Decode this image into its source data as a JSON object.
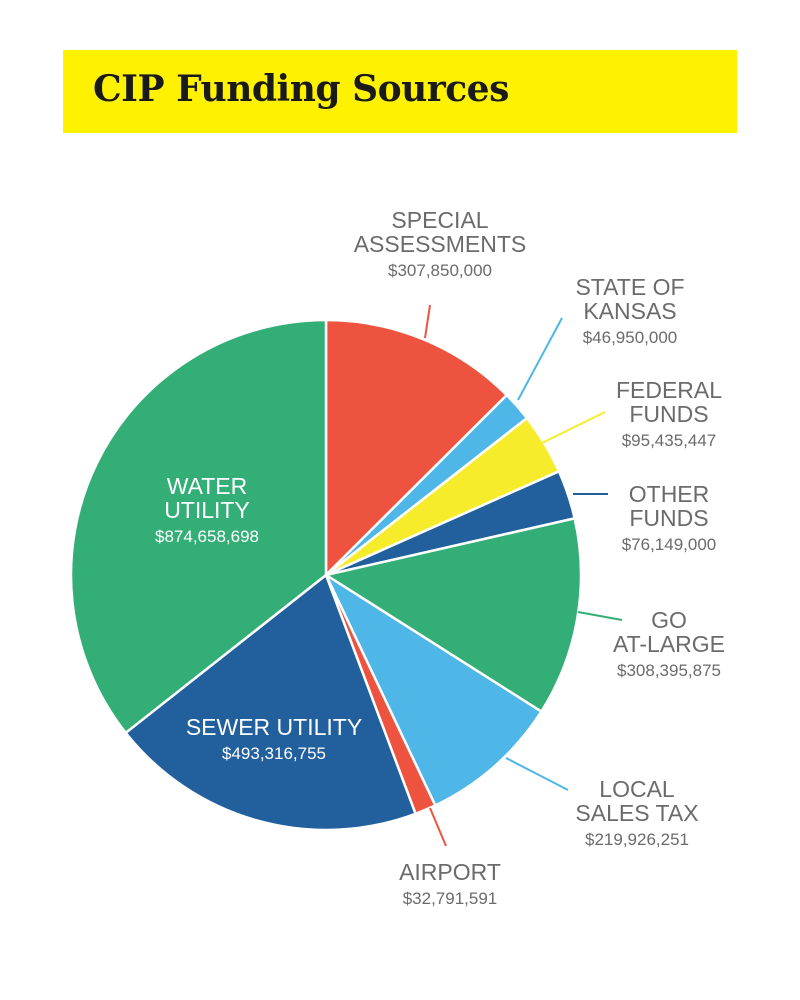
{
  "title": "CIP Funding Sources",
  "colors": {
    "title_bg": "#fff200",
    "red": "#ee5340",
    "light_blue": "#4fb6e8",
    "yellow": "#f7ec2c",
    "dark_blue": "#22609d",
    "green": "#34ae77"
  },
  "chart_data": {
    "type": "pie",
    "title": "CIP Funding Sources",
    "slices": [
      {
        "name_lines": [
          "SPECIAL",
          "ASSESSMENTS"
        ],
        "value_label": "$307,850,000",
        "value": 307850000,
        "color": "#ee5340",
        "label_mode": "outside",
        "line_color": "#ee5340"
      },
      {
        "name_lines": [
          "STATE OF",
          "KANSAS"
        ],
        "value_label": "$46,950,000",
        "value": 46950000,
        "color": "#4fb6e8",
        "label_mode": "outside",
        "line_color": "#4fb6e8"
      },
      {
        "name_lines": [
          "FEDERAL",
          "FUNDS"
        ],
        "value_label": "$95,435,447",
        "value": 95435447,
        "color": "#f7ec2c",
        "label_mode": "outside",
        "line_color": "#f7ec2c"
      },
      {
        "name_lines": [
          "OTHER",
          "FUNDS"
        ],
        "value_label": "$76,149,000",
        "value": 76149000,
        "color": "#22609d",
        "label_mode": "outside",
        "line_color": "#22609d"
      },
      {
        "name_lines": [
          "GO",
          "AT-LARGE"
        ],
        "value_label": "$308,395,875",
        "value": 308395875,
        "color": "#34ae77",
        "label_mode": "outside",
        "line_color": "#34ae77"
      },
      {
        "name_lines": [
          "LOCAL",
          "SALES TAX"
        ],
        "value_label": "$219,926,251",
        "value": 219926251,
        "color": "#4fb6e8",
        "label_mode": "outside",
        "line_color": "#4fb6e8"
      },
      {
        "name_lines": [
          "AIRPORT"
        ],
        "value_label": "$32,791,591",
        "value": 32791591,
        "color": "#ee5340",
        "label_mode": "outside",
        "line_color": "#ee5340"
      },
      {
        "name_lines": [
          "SEWER UTILITY"
        ],
        "value_label": "$493,316,755",
        "value": 493316755,
        "color": "#22609d",
        "label_mode": "inside"
      },
      {
        "name_lines": [
          "WATER",
          "UTILITY"
        ],
        "value_label": "$874,658,698",
        "value": 874658698,
        "color": "#34ae77",
        "label_mode": "inside"
      }
    ]
  }
}
